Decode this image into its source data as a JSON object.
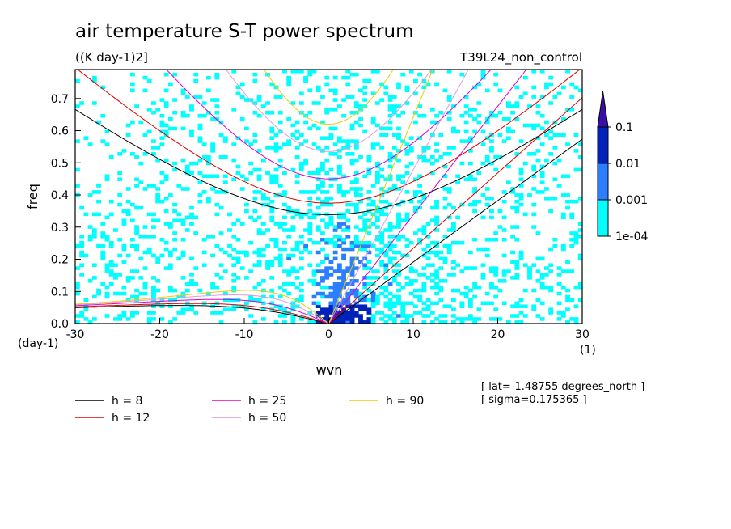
{
  "chart_data": {
    "type": "heatmap",
    "title": "air temperature S-T power spectrum",
    "subtitle": "((K day-1)2]",
    "run_label": "T39L24_non_control",
    "xlabel": "wvn",
    "ylabel": "freq",
    "x_unit": "(1)",
    "y_unit": "(day-1)",
    "xlim": [
      -30,
      30
    ],
    "ylim": [
      0,
      0.79
    ],
    "x_ticks": [
      -30,
      -20,
      -10,
      0,
      10,
      20,
      30
    ],
    "x_tick_labels": [
      "-30",
      "-20",
      "-10",
      "0",
      "10",
      "20",
      "30"
    ],
    "y_ticks": [
      0,
      0.1,
      0.2,
      0.3,
      0.4,
      0.5,
      0.6,
      0.7
    ],
    "y_tick_labels": [
      "0.0",
      "0.1",
      "0.2",
      "0.3",
      "0.4",
      "0.5",
      "0.6",
      "0.7"
    ],
    "colorbar": {
      "levels": [
        "1e-04",
        "0.001",
        "0.01",
        "0.1"
      ],
      "colors": [
        "#00ffff",
        "#2b7fff",
        "#0022bb",
        "#3a0fa8"
      ]
    },
    "dispersion_curves": [
      {
        "h": 8,
        "label": "h =  8",
        "color": "#000000"
      },
      {
        "h": 12,
        "label": "h = 12",
        "color": "#e00000"
      },
      {
        "h": 25,
        "label": "h = 25",
        "color": "#dd00cc"
      },
      {
        "h": 50,
        "label": "h = 50",
        "color": "#dd99dd"
      },
      {
        "h": 90,
        "label": "h = 90",
        "color": "#eecc00"
      }
    ],
    "annotations": [
      "[ lat=-1.48755 degrees_north ]",
      "[ sigma=0.175365 ]"
    ]
  }
}
